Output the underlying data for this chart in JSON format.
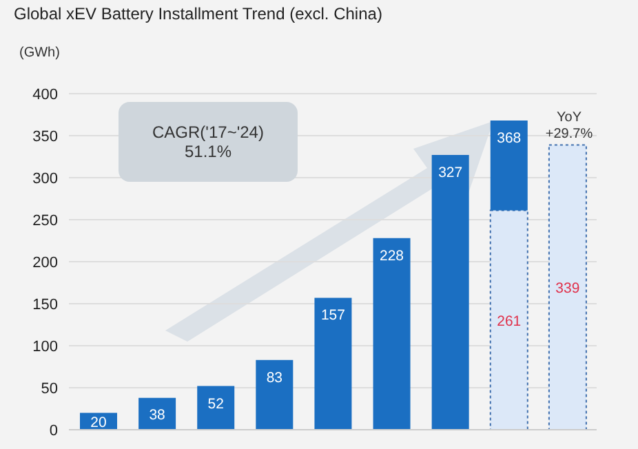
{
  "chart_data": {
    "type": "bar",
    "title": "Global xEV Battery Installment Trend (excl. China)",
    "ylabel": "(GWh)",
    "categories": [
      null,
      null,
      null,
      null,
      null,
      null,
      null,
      null,
      null
    ],
    "stacked": true,
    "series": [
      {
        "color": "#dce8f8",
        "values": [
          null,
          null,
          null,
          null,
          null,
          null,
          null,
          261,
          339
        ],
        "value_labels": [
          null,
          null,
          null,
          null,
          null,
          null,
          null,
          "261",
          "339"
        ]
      },
      {
        "color": "#1b6fc2",
        "values": [
          20,
          38,
          52,
          83,
          157,
          228,
          327,
          107,
          null
        ],
        "value_labels": [
          "20",
          "38",
          "52",
          "83",
          "157",
          "228",
          "327",
          null,
          null
        ]
      }
    ],
    "totals": [
      null,
      null,
      null,
      null,
      null,
      null,
      null,
      "368",
      null
    ],
    "ylim": [
      0,
      400
    ],
    "yticks": [
      0,
      50,
      100,
      150,
      200,
      250,
      300,
      350,
      400
    ],
    "grid": "y",
    "legend": false,
    "annotations": [
      "CAGR('17~'24)\n51.1%",
      "YoY\n+29.7%"
    ]
  }
}
